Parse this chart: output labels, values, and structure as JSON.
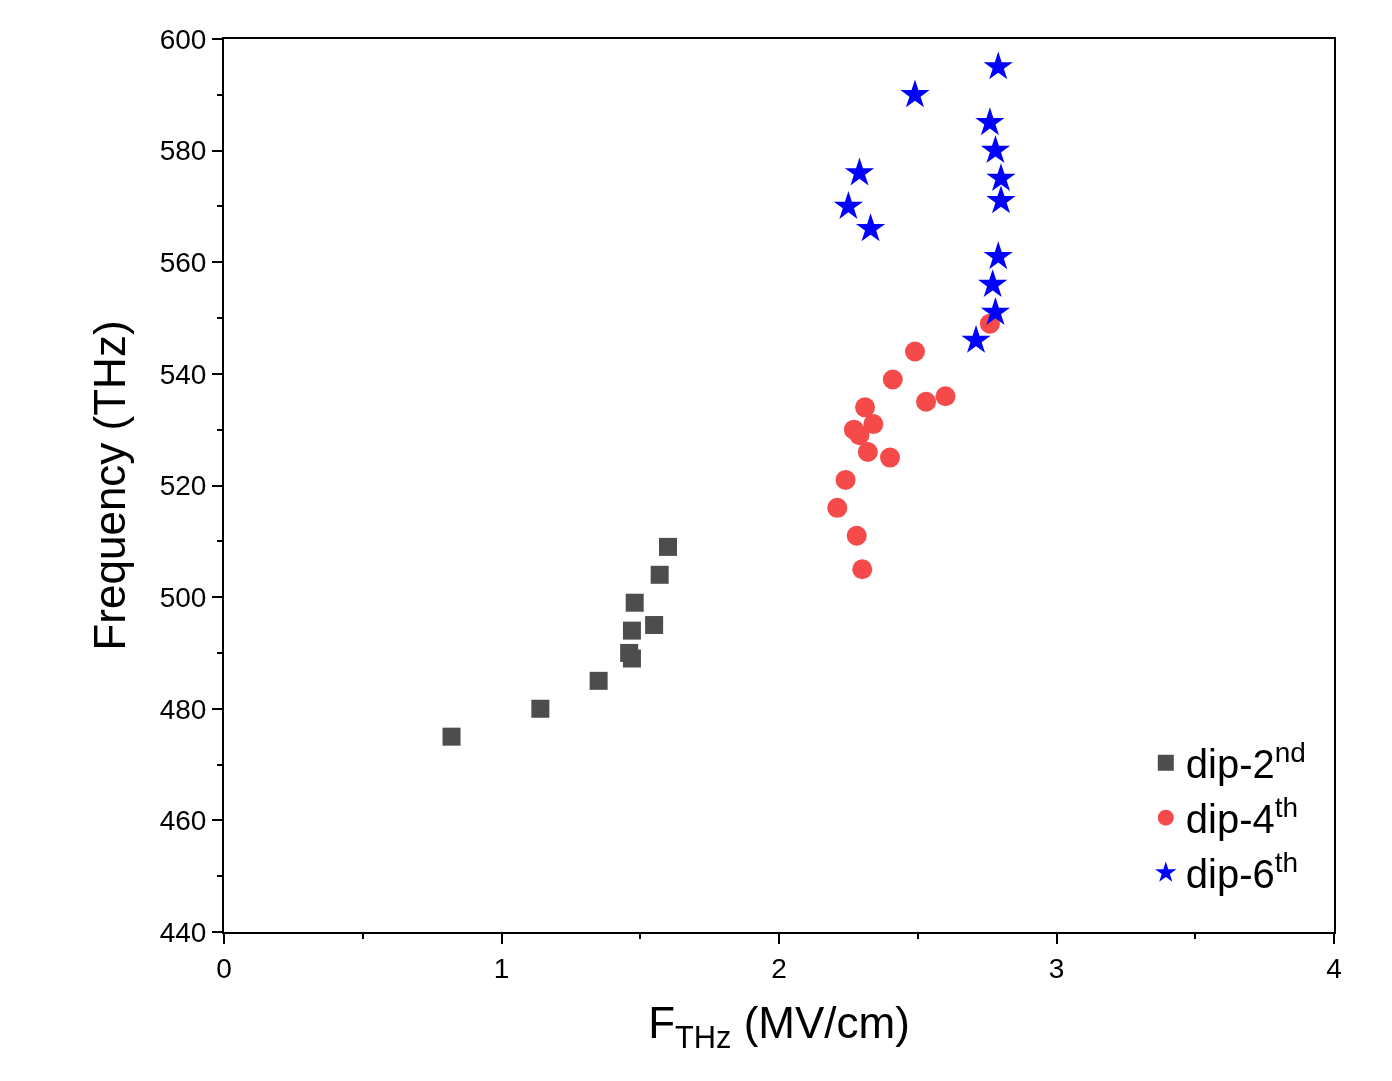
{
  "chart_data": {
    "type": "scatter",
    "xlabel": "F$_{THz}$ (MV/cm)",
    "ylabel": "Frequency (THz)",
    "xlim": [
      0,
      4
    ],
    "xticks": [
      0,
      1,
      2,
      3,
      4
    ],
    "ylim": [
      440,
      600
    ],
    "yticks": [
      440,
      460,
      480,
      500,
      520,
      540,
      560,
      580,
      600
    ],
    "legend": "bottom right",
    "series": [
      {
        "name": "dip-2$^{nd}$",
        "color": "#4d4d4d",
        "marker": "square",
        "x": [
          0.82,
          1.14,
          1.35,
          1.46,
          1.47,
          1.47,
          1.48,
          1.55,
          1.57,
          1.6
        ],
        "values": [
          475,
          480,
          485,
          490,
          489,
          494,
          499,
          495,
          504,
          509
        ]
      },
      {
        "name": "dip-4$^{th}$",
        "color": "#f44a4a",
        "marker": "circle",
        "x": [
          2.3,
          2.28,
          2.21,
          2.24,
          2.32,
          2.4,
          2.27,
          2.29,
          2.34,
          2.31,
          2.53,
          2.6,
          2.41,
          2.49,
          2.76
        ],
        "values": [
          505,
          511,
          516,
          521,
          526,
          525,
          530,
          529,
          531,
          534,
          535,
          536,
          539,
          544,
          549
        ]
      },
      {
        "name": "dip-6$^{th}$",
        "color": "#0000ff",
        "marker": "star",
        "x": [
          2.71,
          2.78,
          2.77,
          2.79,
          2.33,
          2.25,
          2.8,
          2.29,
          2.8,
          2.78,
          2.76,
          2.49,
          2.79
        ],
        "values": [
          546,
          551,
          556,
          561,
          566,
          570,
          571,
          576,
          575,
          580,
          585,
          590,
          595
        ]
      }
    ]
  }
}
